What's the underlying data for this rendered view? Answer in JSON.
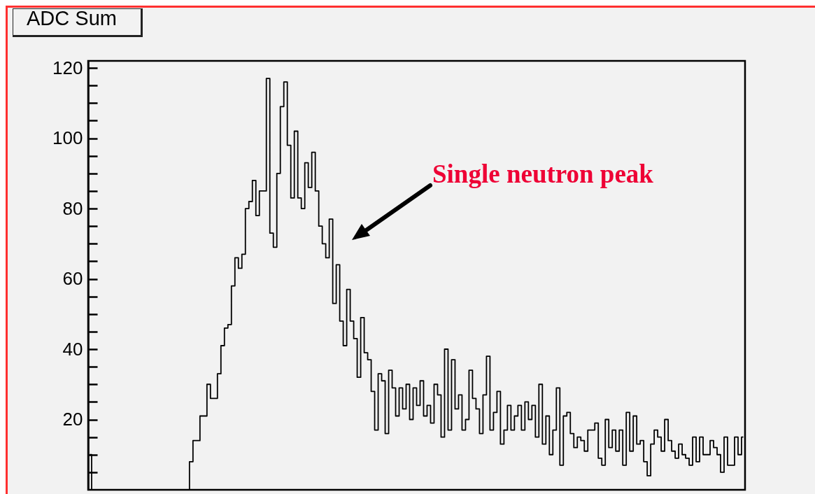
{
  "chart_data": {
    "type": "step",
    "title": "ADC Sum",
    "annotations": [
      "Single neutron peak"
    ],
    "tick_labels": "y",
    "color": "#000000",
    "ylim": [
      0,
      122
    ],
    "yticks": [
      {
        "value": 5,
        "label": null
      },
      {
        "value": 10,
        "label": null
      },
      {
        "value": 15,
        "label": null
      },
      20,
      {
        "value": 25,
        "label": null
      },
      {
        "value": 30,
        "label": null
      },
      {
        "value": 35,
        "label": null
      },
      40,
      {
        "value": 45,
        "label": null
      },
      {
        "value": 50,
        "label": null
      },
      {
        "value": 55,
        "label": null
      },
      60,
      {
        "value": 65,
        "label": null
      },
      {
        "value": 70,
        "label": null
      },
      {
        "value": 75,
        "label": null
      },
      80,
      {
        "value": 85,
        "label": null
      },
      {
        "value": 90,
        "label": null
      },
      {
        "value": 95,
        "label": null
      },
      100,
      {
        "value": 105,
        "label": null
      },
      {
        "value": 110,
        "label": null
      },
      {
        "value": 115,
        "label": null
      },
      120
    ],
    "categories": [
      null,
      null,
      null,
      null,
      null,
      null,
      null,
      null,
      null,
      null,
      null,
      null,
      null,
      null,
      null,
      null,
      null,
      null,
      null,
      null,
      null,
      null,
      null,
      null,
      null,
      null,
      null,
      null,
      null,
      null,
      null,
      null,
      null,
      null,
      null,
      null,
      null,
      null,
      null,
      null,
      null,
      null,
      null,
      null,
      null,
      null,
      null,
      null,
      null,
      null,
      null,
      null,
      null,
      null,
      null,
      null,
      null,
      null,
      null,
      null,
      null,
      null,
      null,
      null,
      null,
      null,
      null,
      null,
      null,
      null,
      null,
      null,
      null,
      null,
      null,
      null,
      null,
      null,
      null,
      null,
      null,
      null,
      null,
      null,
      null,
      null,
      null,
      null,
      null,
      null,
      null,
      null,
      null,
      null,
      null,
      null,
      null,
      null,
      null,
      null,
      null,
      null,
      null,
      null,
      null,
      null,
      null,
      null,
      null,
      null,
      null,
      null,
      null,
      null,
      null,
      null,
      null,
      null,
      null,
      null,
      null,
      null,
      null,
      null,
      null,
      null,
      null,
      null,
      null,
      null,
      null,
      null,
      null,
      null,
      null,
      null,
      null,
      null,
      null,
      null,
      null,
      null,
      null,
      null,
      null,
      null,
      null,
      null,
      null,
      null,
      null,
      null,
      null,
      null,
      null,
      null,
      null,
      null,
      null,
      null,
      null,
      null,
      null,
      null,
      null,
      null,
      null,
      null,
      null,
      null,
      null,
      null,
      null,
      null,
      null,
      null,
      null,
      null,
      null,
      null,
      null,
      null,
      null,
      null,
      null,
      null,
      null,
      null
    ],
    "values": [
      10,
      0,
      0,
      0,
      0,
      0,
      0,
      0,
      0,
      0,
      0,
      0,
      0,
      0,
      0,
      0,
      0,
      0,
      0,
      0,
      0,
      0,
      0,
      0,
      0,
      0,
      0,
      0,
      0,
      8,
      14,
      14,
      21,
      21,
      30,
      26,
      26,
      33,
      41,
      46,
      47,
      58,
      66,
      63,
      67,
      80,
      82,
      88,
      78,
      85,
      85,
      117,
      73,
      69,
      90,
      109,
      116,
      98,
      83,
      102,
      83,
      80,
      93,
      86,
      96,
      85,
      75,
      70,
      66,
      77,
      53,
      64,
      48,
      41,
      57,
      48,
      43,
      32,
      49,
      39,
      37,
      28,
      17,
      33,
      31,
      16,
      34,
      29,
      21,
      29,
      23,
      30,
      20,
      29,
      24,
      31,
      21,
      24,
      19,
      30,
      27,
      15,
      40,
      17,
      37,
      23,
      27,
      17,
      20,
      34,
      26,
      23,
      16,
      27,
      38,
      17,
      22,
      28,
      13,
      17,
      24,
      17,
      21,
      24,
      17,
      25,
      20,
      24,
      15,
      30,
      13,
      21,
      10,
      17,
      29,
      7,
      21,
      22,
      16,
      12,
      15,
      14,
      11,
      17,
      17,
      19,
      9,
      7,
      20,
      12,
      17,
      11,
      17,
      7,
      22,
      11,
      21,
      13,
      14,
      8,
      4,
      13,
      17,
      15,
      11,
      20,
      14,
      11,
      9,
      13,
      10,
      9,
      7,
      15,
      8,
      15,
      10,
      10,
      14,
      12,
      10,
      5,
      15,
      7,
      7,
      15,
      10,
      15
    ]
  }
}
